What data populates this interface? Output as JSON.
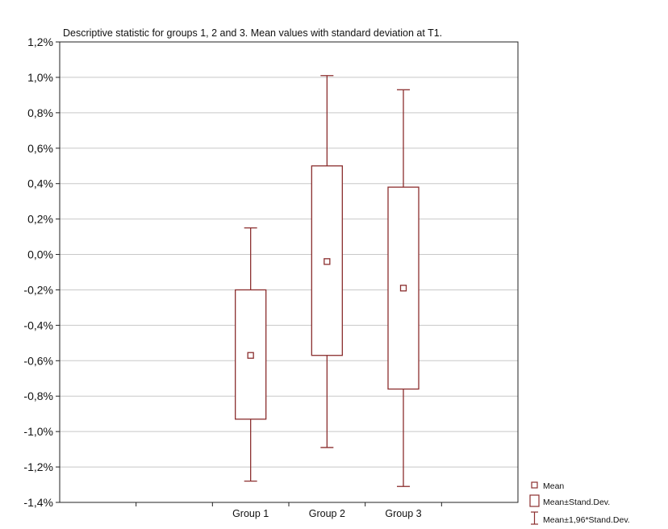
{
  "chart_data": {
    "type": "box",
    "title": "Descriptive statistic   for groups 1, 2 and 3. Mean values with standard deviation at T1.",
    "xlabel": "",
    "ylabel": "",
    "ylim": [
      -1.4,
      1.2
    ],
    "yticks": [
      1.2,
      1.0,
      0.8,
      0.6,
      0.4,
      0.2,
      0.0,
      -0.2,
      -0.4,
      -0.6,
      -0.8,
      -1.0,
      -1.2,
      -1.4
    ],
    "ytick_labels": [
      "1,2%",
      "1,0%",
      "0,8%",
      "0,6%",
      "0,4%",
      "0,2%",
      "0,0%",
      "-0,2%",
      "-0,4%",
      "-0,6%",
      "-0,8%",
      "-1,0%",
      "-1,2%",
      "-1,4%"
    ],
    "x_slots": 6,
    "grid": true,
    "categories": [
      "Group 1",
      "Group 2",
      "Group 3"
    ],
    "groups": [
      {
        "label": "Group 1",
        "position": 2,
        "mean": -0.57,
        "box_high": -0.2,
        "box_low": -0.93,
        "whisker_high": 0.15,
        "whisker_low": -1.28
      },
      {
        "label": "Group 2",
        "position": 3,
        "mean": -0.04,
        "box_high": 0.5,
        "box_low": -0.57,
        "whisker_high": 1.01,
        "whisker_low": -1.09
      },
      {
        "label": "Group 3",
        "position": 4,
        "mean": -0.19,
        "box_high": 0.38,
        "box_low": -0.76,
        "whisker_high": 0.93,
        "whisker_low": -1.31
      }
    ],
    "legend": {
      "placement": "bottom-right",
      "entries": [
        "Mean",
        "Mean±Stand.Dev.",
        "Mean±1,96*Stand.Dev."
      ]
    },
    "colors": {
      "series": "#8b2e2e",
      "grid": "#c8c8c8",
      "axis": "#222222"
    }
  }
}
